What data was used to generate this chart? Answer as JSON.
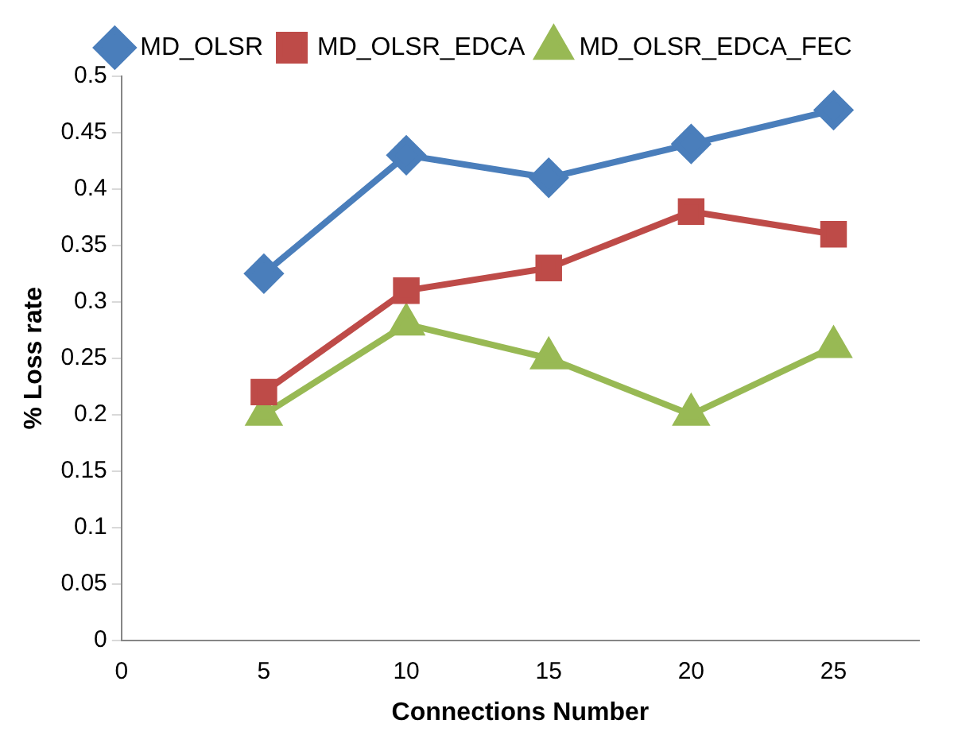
{
  "chart_data": {
    "type": "line",
    "xlabel": "Connections Number",
    "ylabel": "% Loss rate",
    "x": [
      5,
      10,
      15,
      20,
      25
    ],
    "series": [
      {
        "name": "MD_OLSR",
        "color": "#4a7ebb",
        "marker": "diamond",
        "values": [
          0.325,
          0.43,
          0.41,
          0.44,
          0.47
        ]
      },
      {
        "name": "MD_OLSR_EDCA",
        "color": "#be4b48",
        "marker": "square",
        "values": [
          0.22,
          0.31,
          0.33,
          0.38,
          0.36
        ]
      },
      {
        "name": "MD_OLSR_EDCA_FEC",
        "color": "#98b954",
        "marker": "triangle",
        "values": [
          0.2,
          0.28,
          0.25,
          0.2,
          0.26
        ]
      }
    ],
    "xlim": [
      0,
      28
    ],
    "xticks": [
      0,
      5,
      10,
      15,
      20,
      25
    ],
    "ylim": [
      0,
      0.5
    ],
    "yticks": [
      0,
      0.05,
      0.1,
      0.15,
      0.2,
      0.25,
      0.3,
      0.35,
      0.4,
      0.45,
      0.5
    ],
    "grid": false,
    "legend": "top"
  }
}
